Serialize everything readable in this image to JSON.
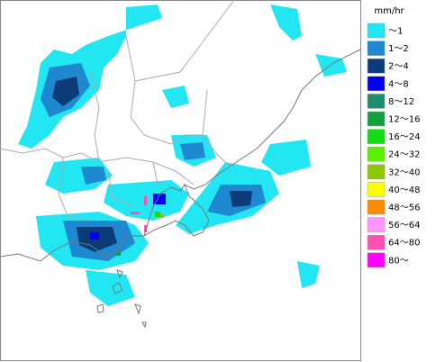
{
  "legend": {
    "unit": "mm/hr",
    "items": [
      {
        "label": "～1",
        "color": "#22e6f2"
      },
      {
        "label": "1～2",
        "color": "#1e88d0"
      },
      {
        "label": "2～4",
        "color": "#0c3c78"
      },
      {
        "label": "4～8",
        "color": "#0000f0"
      },
      {
        "label": "8～12",
        "color": "#1e8c6e"
      },
      {
        "label": "12～16",
        "color": "#14a03c"
      },
      {
        "label": "16～24",
        "color": "#14dc14"
      },
      {
        "label": "24～32",
        "color": "#5af000"
      },
      {
        "label": "32～40",
        "color": "#8cc800"
      },
      {
        "label": "40～48",
        "color": "#ffff00"
      },
      {
        "label": "48～56",
        "color": "#ff8c00"
      },
      {
        "label": "56～64",
        "color": "#ff96ff"
      },
      {
        "label": "64～80",
        "color": "#ff50b4"
      },
      {
        "label": "80～",
        "color": "#ff00ff"
      }
    ]
  }
}
